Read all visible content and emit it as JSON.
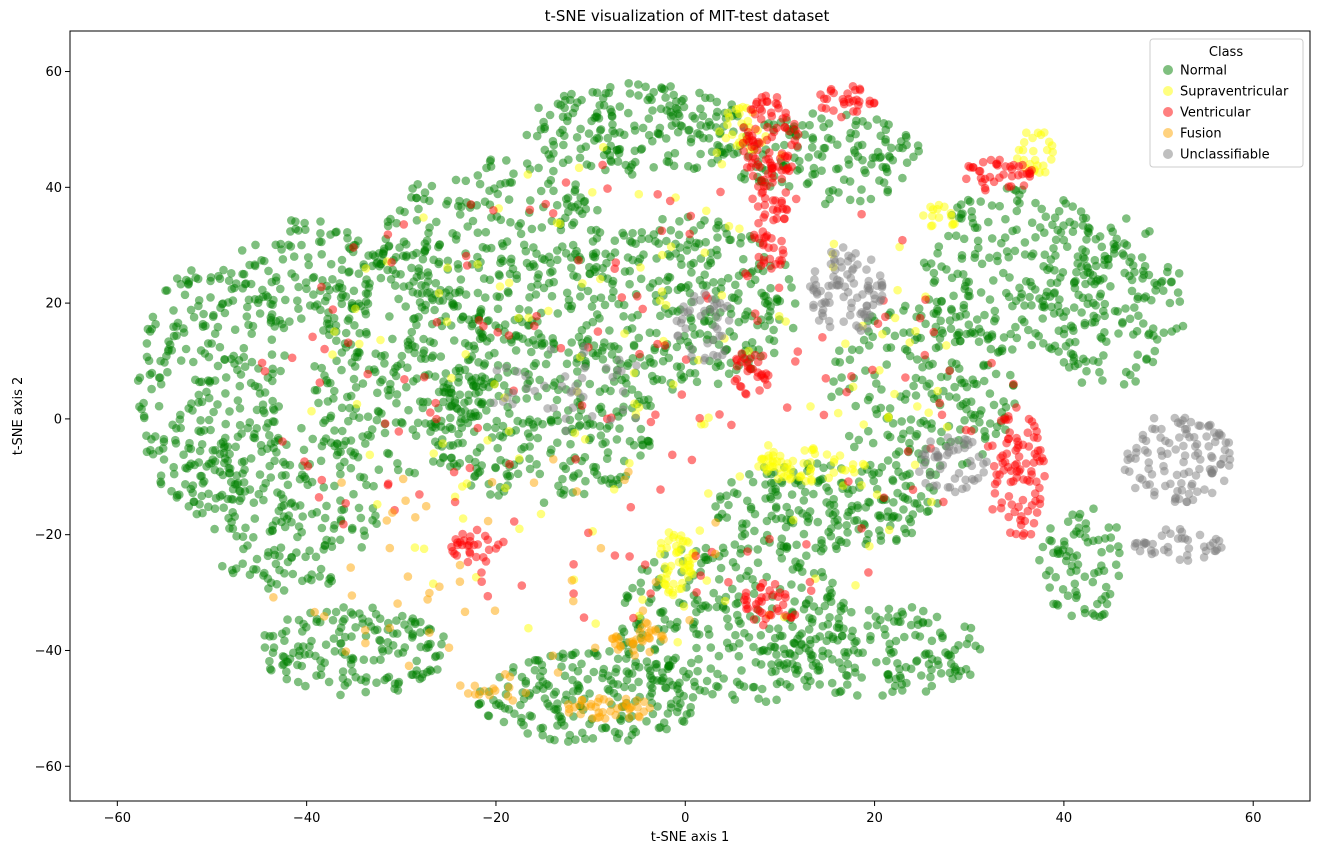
{
  "chart_data": {
    "type": "scatter",
    "title": "t-SNE visualization of MIT-test dataset",
    "xlabel": "t-SNE axis 1",
    "ylabel": "t-SNE axis 2",
    "xlim": [
      -65,
      66
    ],
    "ylim": [
      -66,
      67
    ],
    "xticks": [
      -60,
      -40,
      -20,
      0,
      20,
      40,
      60
    ],
    "yticks": [
      -60,
      -40,
      -20,
      0,
      20,
      40,
      60
    ],
    "grid": false,
    "legend": {
      "title": "Class",
      "placement": "top-right"
    },
    "series": [
      {
        "name": "Normal",
        "color": "#008000",
        "opacity": 0.5,
        "clusters": [
          {
            "cx": -50,
            "cy": 5,
            "rx": 8,
            "ry": 22,
            "n": 260
          },
          {
            "cx": -40,
            "cy": 25,
            "rx": 8,
            "ry": 10,
            "n": 120
          },
          {
            "cx": -30,
            "cy": 10,
            "rx": 10,
            "ry": 20,
            "n": 280
          },
          {
            "cx": -42,
            "cy": -15,
            "rx": 10,
            "ry": 15,
            "n": 200
          },
          {
            "cx": -35,
            "cy": -40,
            "rx": 10,
            "ry": 8,
            "n": 160
          },
          {
            "cx": -20,
            "cy": 30,
            "rx": 12,
            "ry": 15,
            "n": 260
          },
          {
            "cx": -15,
            "cy": 0,
            "rx": 12,
            "ry": 15,
            "n": 300
          },
          {
            "cx": -10,
            "cy": -48,
            "rx": 12,
            "ry": 8,
            "n": 200
          },
          {
            "cx": -5,
            "cy": 50,
            "rx": 12,
            "ry": 8,
            "n": 200
          },
          {
            "cx": 0,
            "cy": 20,
            "rx": 12,
            "ry": 15,
            "n": 280
          },
          {
            "cx": 5,
            "cy": -35,
            "rx": 12,
            "ry": 15,
            "n": 260
          },
          {
            "cx": 15,
            "cy": -15,
            "rx": 12,
            "ry": 8,
            "n": 200
          },
          {
            "cx": 15,
            "cy": 45,
            "rx": 10,
            "ry": 8,
            "n": 140
          },
          {
            "cx": 25,
            "cy": 5,
            "rx": 10,
            "ry": 15,
            "n": 200
          },
          {
            "cx": 35,
            "cy": 25,
            "rx": 10,
            "ry": 15,
            "n": 200
          },
          {
            "cx": 45,
            "cy": 20,
            "rx": 8,
            "ry": 15,
            "n": 160
          },
          {
            "cx": 42,
            "cy": -25,
            "rx": 5,
            "ry": 10,
            "n": 80
          },
          {
            "cx": 20,
            "cy": -40,
            "rx": 12,
            "ry": 8,
            "n": 160
          }
        ]
      },
      {
        "name": "Supraventricular",
        "color": "#ffff00",
        "opacity": 0.5,
        "clusters": [
          {
            "cx": 13,
            "cy": -8,
            "rx": 6,
            "ry": 3,
            "n": 60
          },
          {
            "cx": -1,
            "cy": -25,
            "rx": 2,
            "ry": 6,
            "n": 50
          },
          {
            "cx": 37,
            "cy": 46,
            "rx": 2,
            "ry": 4,
            "n": 25
          },
          {
            "cx": 6,
            "cy": 50,
            "rx": 3,
            "ry": 4,
            "n": 25
          },
          {
            "cx": 27,
            "cy": 35,
            "rx": 2,
            "ry": 2,
            "n": 15
          },
          {
            "cx": -5,
            "cy": 5,
            "rx": 35,
            "ry": 45,
            "n": 140
          }
        ]
      },
      {
        "name": "Ventricular",
        "color": "#ff0000",
        "opacity": 0.5,
        "clusters": [
          {
            "cx": 9,
            "cy": 48,
            "rx": 3,
            "ry": 8,
            "n": 80
          },
          {
            "cx": 9,
            "cy": 35,
            "rx": 2,
            "ry": 10,
            "n": 60
          },
          {
            "cx": 17,
            "cy": 55,
            "rx": 3,
            "ry": 3,
            "n": 30
          },
          {
            "cx": 35,
            "cy": -10,
            "rx": 3,
            "ry": 12,
            "n": 90
          },
          {
            "cx": 33,
            "cy": 42,
            "rx": 4,
            "ry": 3,
            "n": 40
          },
          {
            "cx": 7,
            "cy": 8,
            "rx": 2,
            "ry": 4,
            "n": 30
          },
          {
            "cx": 9,
            "cy": -32,
            "rx": 3,
            "ry": 4,
            "n": 35
          },
          {
            "cx": -22,
            "cy": -22,
            "rx": 3,
            "ry": 3,
            "n": 30
          },
          {
            "cx": -5,
            "cy": 5,
            "rx": 40,
            "ry": 40,
            "n": 160
          }
        ]
      },
      {
        "name": "Fusion",
        "color": "#ffa500",
        "opacity": 0.5,
        "clusters": [
          {
            "cx": -8,
            "cy": -50,
            "rx": 5,
            "ry": 2,
            "n": 40
          },
          {
            "cx": -5,
            "cy": -38,
            "rx": 3,
            "ry": 3,
            "n": 30
          },
          {
            "cx": -20,
            "cy": -47,
            "rx": 4,
            "ry": 3,
            "n": 15
          },
          {
            "cx": -20,
            "cy": -25,
            "rx": 25,
            "ry": 20,
            "n": 50
          }
        ]
      },
      {
        "name": "Unclassifiable",
        "color": "#808080",
        "opacity": 0.5,
        "clusters": [
          {
            "cx": 17,
            "cy": 22,
            "rx": 4,
            "ry": 8,
            "n": 90
          },
          {
            "cx": 52,
            "cy": -7,
            "rx": 6,
            "ry": 8,
            "n": 110
          },
          {
            "cx": 52,
            "cy": -22,
            "rx": 5,
            "ry": 3,
            "n": 40
          },
          {
            "cx": 28,
            "cy": -8,
            "rx": 4,
            "ry": 5,
            "n": 50
          },
          {
            "cx": 2,
            "cy": 15,
            "rx": 3,
            "ry": 8,
            "n": 40
          },
          {
            "cx": -12,
            "cy": 5,
            "rx": 10,
            "ry": 8,
            "n": 40
          }
        ]
      }
    ]
  }
}
